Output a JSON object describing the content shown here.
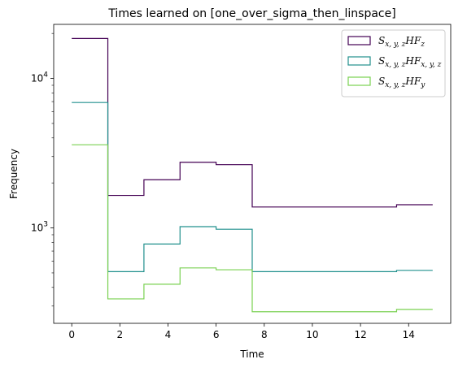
{
  "chart_data": {
    "type": "step-histogram",
    "title": "Times learned on [one_over_sigma_then_linspace]",
    "xlabel": "Time",
    "ylabel": "Frequency",
    "xlim": [
      -0.75,
      15.75
    ],
    "ylim": [
      230,
      23000
    ],
    "yscale": "log",
    "grid": false,
    "legend_position": "top-right",
    "x_ticks": [
      0,
      2,
      4,
      6,
      8,
      10,
      12,
      14
    ],
    "y_major_ticks": [
      {
        "value": 1000,
        "base": "10",
        "exp": "3"
      },
      {
        "value": 10000,
        "base": "10",
        "exp": "4"
      }
    ],
    "y_minor_ticks": [
      300,
      400,
      500,
      600,
      700,
      800,
      900,
      2000,
      3000,
      4000,
      5000,
      6000,
      7000,
      8000,
      9000,
      20000
    ],
    "bin_edges": [
      0,
      1.5,
      3,
      4.5,
      6,
      7.5,
      13.5,
      15
    ],
    "series": [
      {
        "name": "S_{x,y,z}HF_{z}",
        "legend": {
          "main": "S",
          "sub": "x, y, z",
          "mid": "HF",
          "sub2": "z"
        },
        "color": "#440154",
        "values": [
          18500,
          1650,
          2100,
          2750,
          2650,
          1380,
          1430
        ]
      },
      {
        "name": "S_{x,y,z}HF_{x,y,z}",
        "legend": {
          "main": "S",
          "sub": "x, y, z",
          "mid": "HF",
          "sub2": "x, y, z"
        },
        "color": "#21908d",
        "values": [
          6900,
          510,
          780,
          1020,
          980,
          510,
          520
        ]
      },
      {
        "name": "S_{x,y,z}HF_{y}",
        "legend": {
          "main": "S",
          "sub": "x, y, z",
          "mid": "HF",
          "sub2": "y"
        },
        "color": "#7ad151",
        "values": [
          3600,
          335,
          420,
          540,
          525,
          275,
          285
        ]
      }
    ]
  }
}
